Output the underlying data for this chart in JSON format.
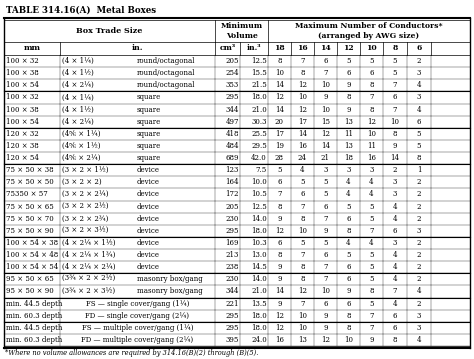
{
  "title": "TABLE 314.16(A)  Metal Boxes",
  "col_headers_row2": [
    "mm",
    "in.",
    "cm³",
    "in.³",
    "18",
    "16",
    "14",
    "12",
    "10",
    "8",
    "6"
  ],
  "rows": [
    [
      "100 × 32",
      "(4 × 1¼)",
      "round/octagonal",
      "205",
      "12.5",
      "8",
      "7",
      "6",
      "5",
      "5",
      "5",
      "2"
    ],
    [
      "100 × 38",
      "(4 × 1½)",
      "round/octagonal",
      "254",
      "15.5",
      "10",
      "8",
      "7",
      "6",
      "6",
      "5",
      "3"
    ],
    [
      "100 × 54",
      "(4 × 2¼)",
      "round/octagonal",
      "353",
      "21.5",
      "14",
      "12",
      "10",
      "9",
      "8",
      "7",
      "4"
    ],
    null,
    [
      "100 × 32",
      "(4 × 1¼)",
      "square",
      "295",
      "18.0",
      "12",
      "10",
      "9",
      "8",
      "7",
      "6",
      "3"
    ],
    [
      "100 × 38",
      "(4 × 1½)",
      "square",
      "344",
      "21.0",
      "14",
      "12",
      "10",
      "9",
      "8",
      "7",
      "4"
    ],
    [
      "100 × 54",
      "(4 × 2¼)",
      "square",
      "497",
      "30.3",
      "20",
      "17",
      "15",
      "13",
      "12",
      "10",
      "6"
    ],
    null,
    [
      "120 × 32",
      "(4⅚ × 1¼)",
      "square",
      "418",
      "25.5",
      "17",
      "14",
      "12",
      "11",
      "10",
      "8",
      "5"
    ],
    [
      "120 × 38",
      "(4⅚ × 1½)",
      "square",
      "484",
      "29.5",
      "19",
      "16",
      "14",
      "13",
      "11",
      "9",
      "5"
    ],
    [
      "120 × 54",
      "(4⅚ × 2¼)",
      "square",
      "689",
      "42.0",
      "28",
      "24",
      "21",
      "18",
      "16",
      "14",
      "8"
    ],
    null,
    [
      "75 × 50 × 38",
      "(3 × 2 × 1½)",
      "device",
      "123",
      "7.5",
      "5",
      "4",
      "3",
      "3",
      "3",
      "2",
      "1"
    ],
    [
      "75 × 50 × 50",
      "(3 × 2 × 2)",
      "device",
      "164",
      "10.0",
      "6",
      "5",
      "5",
      "4",
      "4",
      "3",
      "2"
    ],
    [
      "75350 × 57",
      "(3 × 2 × 2¼)",
      "device",
      "172",
      "10.5",
      "7",
      "6",
      "5",
      "4",
      "4",
      "3",
      "2"
    ],
    [
      "75 × 50 × 65",
      "(3 × 2 × 2½)",
      "device",
      "205",
      "12.5",
      "8",
      "7",
      "6",
      "5",
      "5",
      "4",
      "2"
    ],
    [
      "75 × 50 × 70",
      "(3 × 2 × 2¾)",
      "device",
      "230",
      "14.0",
      "9",
      "8",
      "7",
      "6",
      "5",
      "4",
      "2"
    ],
    [
      "75 × 50 × 90",
      "(3 × 2 × 3½)",
      "device",
      "295",
      "18.0",
      "12",
      "10",
      "9",
      "8",
      "7",
      "6",
      "3"
    ],
    null,
    [
      "100 × 54 × 38",
      "(4 × 2¼ × 1½)",
      "device",
      "169",
      "10.3",
      "6",
      "5",
      "5",
      "4",
      "4",
      "3",
      "2"
    ],
    [
      "100 × 54 × 48",
      "(4 × 2¼ × 1¾)",
      "device",
      "213",
      "13.0",
      "8",
      "7",
      "6",
      "5",
      "5",
      "4",
      "2"
    ],
    [
      "100 × 54 × 54",
      "(4 × 2¼ × 2¼)",
      "device",
      "238",
      "14.5",
      "9",
      "8",
      "7",
      "6",
      "5",
      "4",
      "2"
    ],
    null,
    [
      "95 × 50 × 65",
      "(3¾ × 2 × 2½)",
      "masonry box/gang",
      "230",
      "14.0",
      "9",
      "8",
      "7",
      "6",
      "5",
      "4",
      "2"
    ],
    [
      "95 × 50 × 90",
      "(3¾ × 2 × 3½)",
      "masonry box/gang",
      "344",
      "21.0",
      "14",
      "12",
      "10",
      "9",
      "8",
      "7",
      "4"
    ],
    null,
    [
      "min. 44.5 depth",
      "FS — single cover/gang (1¼)",
      "",
      "221",
      "13.5",
      "9",
      "7",
      "6",
      "6",
      "5",
      "4",
      "2"
    ],
    [
      "min. 60.3 depth",
      "FD — single cover/gang (2¼)",
      "",
      "295",
      "18.0",
      "12",
      "10",
      "9",
      "8",
      "7",
      "6",
      "3"
    ],
    null,
    [
      "min. 44.5 depth",
      "FS — multiple cover/gang (1¼)",
      "",
      "295",
      "18.0",
      "12",
      "10",
      "9",
      "8",
      "7",
      "6",
      "3"
    ],
    [
      "min. 60.3 depth",
      "FD — multiple cover/gang (2¼)",
      "",
      "395",
      "24.0",
      "16",
      "13",
      "12",
      "10",
      "9",
      "8",
      "4"
    ]
  ],
  "footnote": "*Where no volume allowances are required by 314.16(B)(2) through (B)(5).",
  "bg_color": "#ffffff",
  "title_fontsize": 6.2,
  "header_fontsize": 5.8,
  "data_fontsize": 5.0,
  "footnote_fontsize": 4.8
}
